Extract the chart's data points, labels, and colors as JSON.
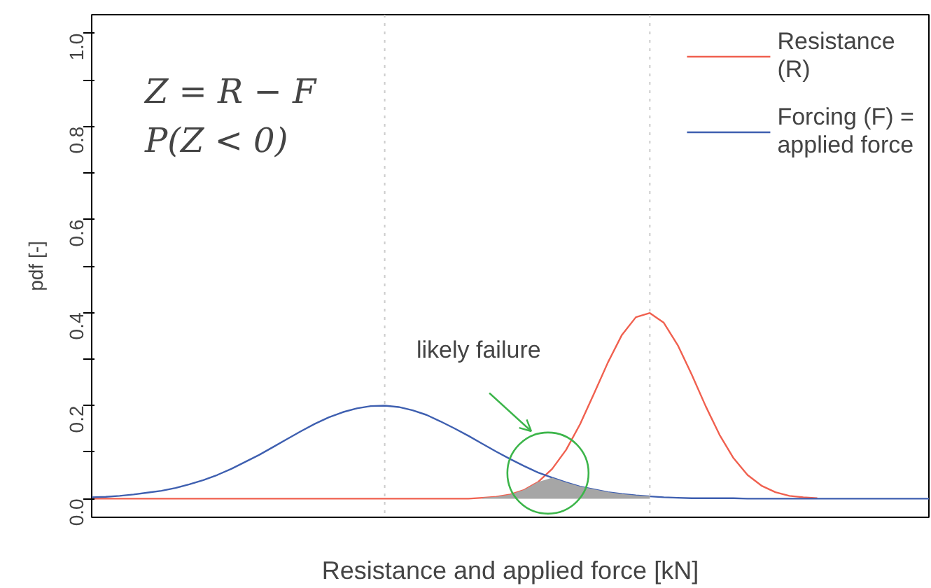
{
  "chart_data": {
    "type": "line",
    "xlabel": "Resistance and applied force [kN]",
    "ylabel": "pdf [-]",
    "categories": [
      null,
      null,
      null,
      null,
      null,
      null,
      null,
      null,
      null,
      null,
      null,
      null,
      null,
      null,
      null,
      null,
      null,
      null,
      null,
      null,
      null,
      null,
      null,
      null,
      null,
      null,
      null,
      null,
      null,
      null,
      null,
      null,
      null,
      null,
      null,
      null,
      null,
      null,
      null,
      null,
      null,
      null,
      null,
      null,
      null,
      null,
      null,
      null,
      null,
      null,
      null,
      null,
      null,
      null,
      null,
      null,
      null,
      null,
      null,
      null,
      null
    ],
    "series": [
      {
        "name": "Resistance\n(R)",
        "color": "#f0604f",
        "values": [
          0,
          0,
          0,
          0,
          0,
          0,
          0,
          0,
          0,
          0,
          0,
          0,
          0,
          0,
          0,
          0,
          0,
          0,
          0,
          0,
          0,
          0,
          0,
          0,
          0,
          0,
          0,
          0,
          0.002,
          0.004,
          0.009,
          0.019,
          0.036,
          0.064,
          0.105,
          0.16,
          0.226,
          0.293,
          0.352,
          0.39,
          0.399,
          0.378,
          0.33,
          0.267,
          0.199,
          0.137,
          0.087,
          0.051,
          0.028,
          0.014,
          0.006,
          0.003,
          0.001,
          null,
          null,
          null,
          null,
          null,
          null,
          null,
          null
        ]
      },
      {
        "name": "Forcing (F) =\napplied force",
        "color": "#3e5fb0",
        "values": [
          0.003,
          0.004,
          0.006,
          0.009,
          0.013,
          0.017,
          0.023,
          0.031,
          0.04,
          0.051,
          0.064,
          0.079,
          0.094,
          0.111,
          0.128,
          0.145,
          0.161,
          0.175,
          0.186,
          0.194,
          0.199,
          0.2,
          0.197,
          0.19,
          0.18,
          0.166,
          0.151,
          0.135,
          0.118,
          0.101,
          0.085,
          0.07,
          0.056,
          0.045,
          0.035,
          0.026,
          0.02,
          0.014,
          0.01,
          0.007,
          0.005,
          0.003,
          0.002,
          0.001,
          0.001,
          0.001,
          0.001,
          0,
          0,
          0,
          0,
          0,
          0,
          0,
          0,
          0,
          0,
          0,
          0,
          0,
          0
        ]
      },
      {
        "type": "area",
        "color": "#a6a6a6",
        "values": [
          null,
          null,
          null,
          null,
          null,
          null,
          null,
          null,
          null,
          null,
          null,
          null,
          null,
          null,
          null,
          null,
          null,
          null,
          null,
          null,
          null,
          null,
          null,
          null,
          null,
          null,
          null,
          null,
          0.002,
          0.004,
          0.009,
          0.019,
          0.036,
          0.045,
          0.035,
          0.026,
          0.02,
          0.014,
          0.01,
          0.007,
          0.005,
          null,
          null,
          null,
          null,
          null,
          null,
          null,
          null,
          null,
          null,
          null,
          null,
          null,
          null,
          null,
          null,
          null,
          null,
          null,
          null
        ]
      }
    ],
    "ylim": [
      -0.04,
      1.04
    ],
    "yticks": [
      {
        "value": 0,
        "label": "0.0"
      },
      {
        "value": 0.1,
        "label": null
      },
      0.2,
      {
        "value": 0.3,
        "label": null
      },
      0.4,
      {
        "value": 0.5,
        "label": null
      },
      0.6,
      {
        "value": 0.7,
        "label": null
      },
      0.8,
      {
        "value": 0.9,
        "label": null
      },
      {
        "value": 1,
        "label": "1.0"
      }
    ],
    "annotations": [
      "Z = R − F",
      "P(Z < 0)",
      "likely failure"
    ],
    "grid": false,
    "legend": "top right",
    "tick_labels": "y",
    "line_style": "solid",
    "marker": "none"
  }
}
